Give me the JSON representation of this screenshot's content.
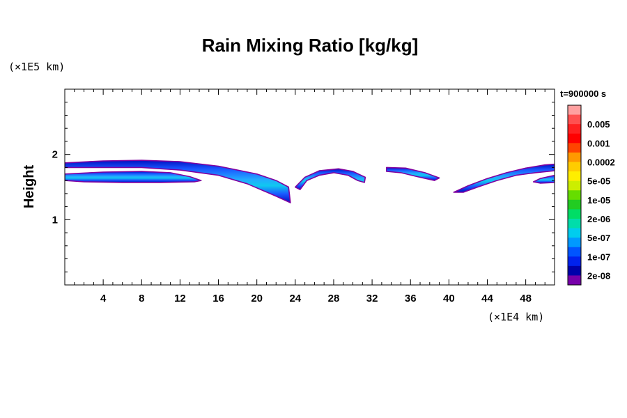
{
  "chart_data": {
    "type": "heatmap",
    "title": "Rain Mixing Ratio [kg/kg]",
    "xlabel": "",
    "ylabel": "Height",
    "x_scale_label": "(×1E4 km)",
    "y_scale_label": "(×1E5 km)",
    "time_label": "t=900000 s",
    "xlim": [
      0,
      51
    ],
    "ylim": [
      0,
      3
    ],
    "x_ticks": [
      4,
      8,
      12,
      16,
      20,
      24,
      28,
      32,
      36,
      40,
      44,
      48
    ],
    "y_ticks": [
      1,
      2
    ],
    "legend": {
      "placement": "right",
      "levels": [
        {
          "label": "",
          "color": "#ffa0a0"
        },
        {
          "label": "0.005",
          "color": "#ff5050"
        },
        {
          "label": "",
          "color": "#ff2020"
        },
        {
          "label": "0.001",
          "color": "#ff0000"
        },
        {
          "label": "",
          "color": "#ff4400"
        },
        {
          "label": "0.0002",
          "color": "#ff9900"
        },
        {
          "label": "",
          "color": "#ffcc00"
        },
        {
          "label": "5e-05",
          "color": "#ffee00"
        },
        {
          "label": "",
          "color": "#ccee00"
        },
        {
          "label": "1e-05",
          "color": "#66dd00"
        },
        {
          "label": "",
          "color": "#22cc22"
        },
        {
          "label": "2e-06",
          "color": "#00dd66"
        },
        {
          "label": "",
          "color": "#00ddaa"
        },
        {
          "label": "5e-07",
          "color": "#00ccee"
        },
        {
          "label": "",
          "color": "#0099ff"
        },
        {
          "label": "1e-07",
          "color": "#0055ff"
        },
        {
          "label": "",
          "color": "#0022ee"
        },
        {
          "label": "2e-08",
          "color": "#0000aa"
        },
        {
          "label": "",
          "color": "#7700aa"
        }
      ]
    },
    "regions": [
      {
        "name": "upper-band-left",
        "outline": [
          [
            0,
            1.87
          ],
          [
            4,
            1.9
          ],
          [
            8,
            1.91
          ],
          [
            12,
            1.89
          ],
          [
            16,
            1.82
          ],
          [
            20,
            1.7
          ],
          [
            22,
            1.6
          ],
          [
            23.3,
            1.5
          ],
          [
            23.5,
            1.26
          ],
          [
            22,
            1.36
          ],
          [
            19,
            1.55
          ],
          [
            16,
            1.68
          ],
          [
            12,
            1.76
          ],
          [
            8,
            1.8
          ],
          [
            4,
            1.8
          ],
          [
            0,
            1.8
          ]
        ]
      },
      {
        "name": "lower-band-left",
        "outline": [
          [
            0,
            1.7
          ],
          [
            4,
            1.73
          ],
          [
            8,
            1.74
          ],
          [
            11,
            1.72
          ],
          [
            13,
            1.66
          ],
          [
            14.2,
            1.6
          ],
          [
            13.5,
            1.58
          ],
          [
            10,
            1.57
          ],
          [
            6,
            1.57
          ],
          [
            2,
            1.58
          ],
          [
            0,
            1.6
          ]
        ]
      },
      {
        "name": "arc-middle",
        "outline": [
          [
            24,
            1.5
          ],
          [
            25,
            1.65
          ],
          [
            26.5,
            1.75
          ],
          [
            28.5,
            1.78
          ],
          [
            30,
            1.74
          ],
          [
            31.3,
            1.65
          ],
          [
            31.2,
            1.57
          ],
          [
            30.5,
            1.6
          ],
          [
            29.5,
            1.68
          ],
          [
            28,
            1.72
          ],
          [
            26.5,
            1.68
          ],
          [
            25.2,
            1.6
          ],
          [
            24.5,
            1.46
          ]
        ]
      },
      {
        "name": "band-right-center",
        "outline": [
          [
            33.5,
            1.8
          ],
          [
            35.5,
            1.79
          ],
          [
            37.5,
            1.72
          ],
          [
            39,
            1.64
          ],
          [
            38.5,
            1.6
          ],
          [
            37,
            1.65
          ],
          [
            35,
            1.72
          ],
          [
            33.5,
            1.74
          ]
        ]
      },
      {
        "name": "upper-band-right",
        "outline": [
          [
            40.5,
            1.42
          ],
          [
            42,
            1.52
          ],
          [
            44,
            1.63
          ],
          [
            46,
            1.72
          ],
          [
            48,
            1.79
          ],
          [
            50,
            1.84
          ],
          [
            51,
            1.85
          ],
          [
            51,
            1.75
          ],
          [
            49,
            1.72
          ],
          [
            47,
            1.68
          ],
          [
            45,
            1.6
          ],
          [
            43,
            1.5
          ],
          [
            41.5,
            1.42
          ]
        ]
      },
      {
        "name": "lower-band-right",
        "outline": [
          [
            48.8,
            1.58
          ],
          [
            49.5,
            1.63
          ],
          [
            51,
            1.68
          ],
          [
            51,
            1.57
          ],
          [
            49.5,
            1.56
          ]
        ]
      }
    ]
  }
}
